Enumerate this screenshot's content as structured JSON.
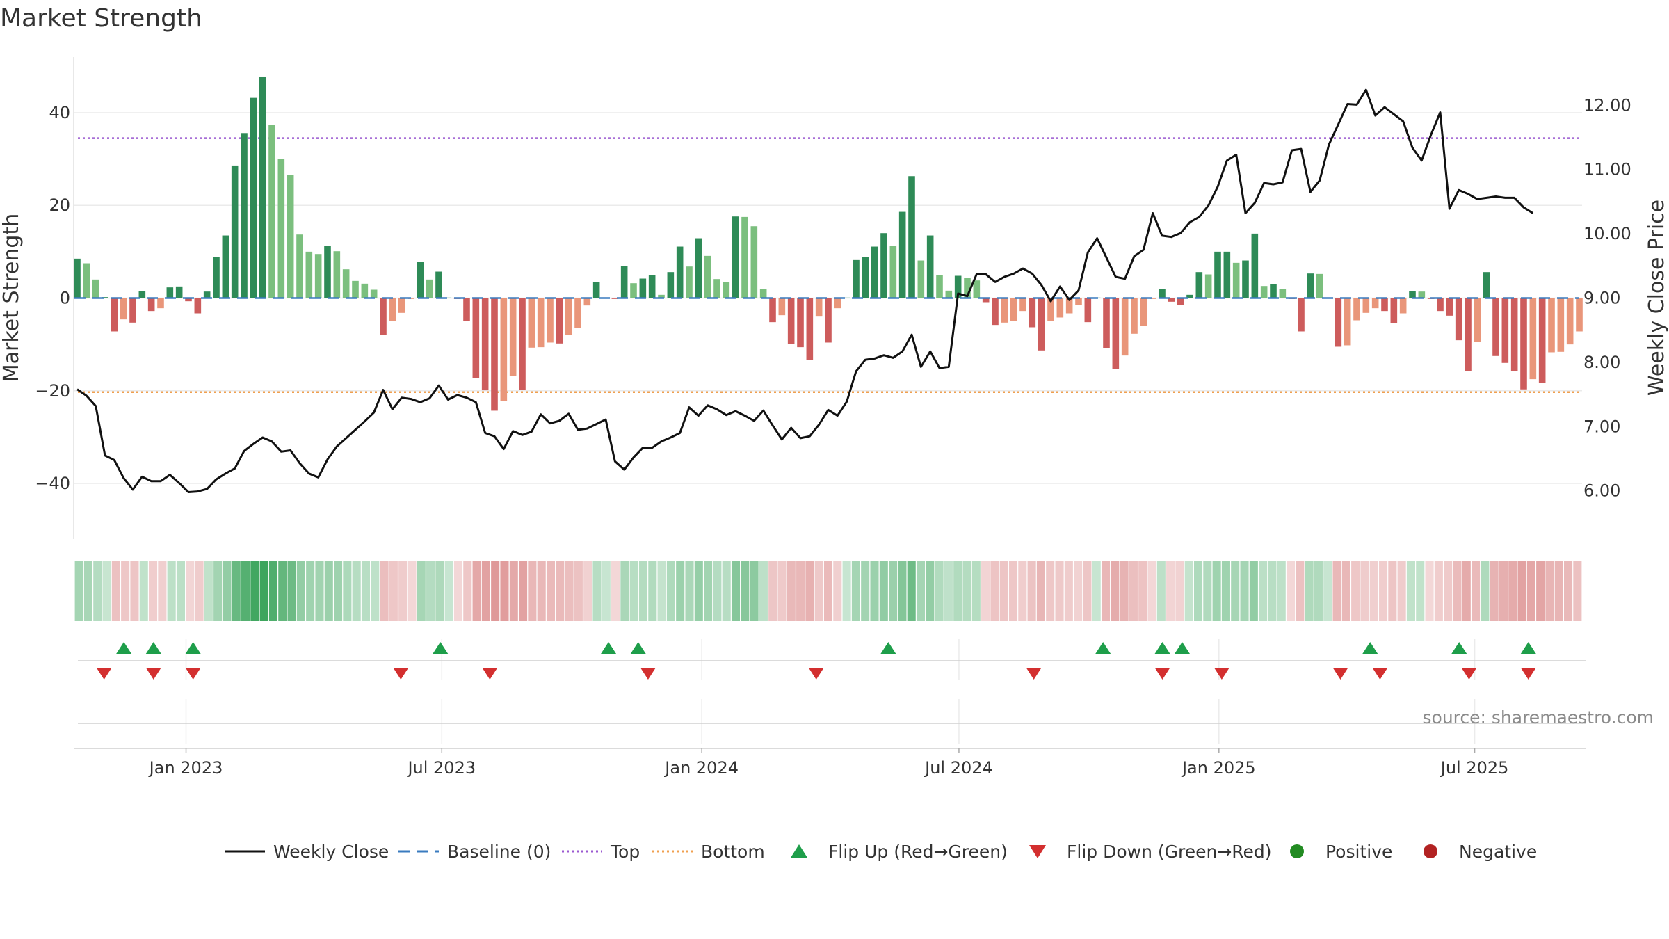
{
  "chart_data": {
    "type": "bar",
    "title": "Market Strength",
    "ylabel_left": "Market Strength",
    "ylabel_right": "Weekly Close Price",
    "ylim_left": [
      -52,
      52
    ],
    "ylim_right": [
      5.25,
      12.75
    ],
    "yticks_left": [
      40,
      20,
      0,
      -20,
      -40
    ],
    "yticks_left_labels": [
      "40",
      "20",
      "0",
      "−20",
      "−40"
    ],
    "yticks_right": [
      12,
      11,
      10,
      9,
      8,
      7,
      6
    ],
    "yticks_right_labels": [
      "12.00",
      "11.00",
      "10.00",
      "9.00",
      "8.00",
      "7.00",
      "6.00"
    ],
    "x_start": "2022-10-14",
    "x_range_days": [
      0,
      1067
    ],
    "xticks": [
      {
        "label": "Jan 2023",
        "day": 79
      },
      {
        "label": "Jul 2023",
        "day": 260
      },
      {
        "label": "Jan 2024",
        "day": 444
      },
      {
        "label": "Jul 2024",
        "day": 626
      },
      {
        "label": "Jan 2025",
        "day": 810
      },
      {
        "label": "Jul 2025",
        "day": 991
      }
    ],
    "top_threshold": 34.5,
    "bottom_threshold": -20.3,
    "baseline": 0,
    "strength": [
      8.5,
      7.5,
      4,
      0.2,
      -7.2,
      -4.6,
      -5.3,
      1.5,
      -2.8,
      -2.2,
      2.3,
      2.5,
      -0.7,
      -3.3,
      1.4,
      8.8,
      13.5,
      28.6,
      35.6,
      43.2,
      47.8,
      37.3,
      30,
      26.5,
      13.7,
      10,
      9.5,
      11.2,
      10.1,
      6.2,
      3.7,
      3.1,
      1.8,
      -8,
      -5,
      -3.2,
      -0.2,
      7.8,
      4,
      5.7,
      0.1,
      -0.2,
      -4.9,
      -17.3,
      -19.9,
      -24.3,
      -22.2,
      -16.8,
      -19.8,
      -10.7,
      -10.6,
      -9.6,
      -9.8,
      -7.9,
      -6.5,
      -1.6,
      3.4,
      0.1,
      -0.2,
      6.9,
      3.2,
      4.2,
      5,
      0.7,
      5.6,
      11.1,
      6.8,
      12.9,
      9.1,
      4.1,
      3.4,
      17.6,
      17.5,
      15.5,
      2,
      -5.2,
      -3.7,
      -9.9,
      -10.6,
      -13.4,
      -4,
      -9.6,
      -2.2,
      0.1,
      8.2,
      8.8,
      11.1,
      14,
      11.3,
      18.6,
      26.3,
      8.1,
      13.5,
      5,
      1.6,
      4.8,
      4.3,
      3.8,
      -0.9,
      -5.8,
      -5.3,
      -5,
      -2.8,
      -6.3,
      -11.3,
      -4.9,
      -4.2,
      -3.3,
      -1.5,
      -5.2,
      0.1,
      -10.8,
      -15.3,
      -12.4,
      -7.7,
      -6,
      -0.2,
      2,
      -0.8,
      -1.5,
      0.7,
      5.6,
      5.1,
      10,
      10,
      7.6,
      8.1,
      13.9,
      2.6,
      3,
      2,
      -0.2,
      -7.2,
      5.3,
      5.2,
      0.1,
      -10.5,
      -10.2,
      -4.8,
      -3.2,
      -2.2,
      -2.8,
      -5.4,
      -3.3,
      1.5,
      1.4,
      -0.2,
      -2.8,
      -3.8,
      -9.1,
      -15.8,
      -9.5,
      5.6,
      -12.5,
      -14,
      -15.8,
      -19.7,
      -17.5,
      -18.3,
      -11.7,
      -11.6,
      -10,
      -7.2
    ],
    "close": [
      7.58,
      7.48,
      7.32,
      6.55,
      6.48,
      6.2,
      6.02,
      6.22,
      6.15,
      6.15,
      6.25,
      6.12,
      5.98,
      5.99,
      6.03,
      6.18,
      6.27,
      6.35,
      6.62,
      6.73,
      6.83,
      6.77,
      6.61,
      6.63,
      6.43,
      6.27,
      6.21,
      6.49,
      6.69,
      6.82,
      6.95,
      7.08,
      7.22,
      7.57,
      7.27,
      7.45,
      7.43,
      7.38,
      7.44,
      7.64,
      7.42,
      7.49,
      7.45,
      7.38,
      6.9,
      6.85,
      6.65,
      6.93,
      6.87,
      6.92,
      7.19,
      7.05,
      7.09,
      7.2,
      6.95,
      6.97,
      7.04,
      7.11,
      6.46,
      6.33,
      6.52,
      6.67,
      6.67,
      6.77,
      6.83,
      6.9,
      7.3,
      7.17,
      7.33,
      7.27,
      7.18,
      7.24,
      7.17,
      7.09,
      7.25,
      7.02,
      6.8,
      6.98,
      6.82,
      6.85,
      7.03,
      7.26,
      7.17,
      7.39,
      7.86,
      8.04,
      8.06,
      8.11,
      8.07,
      8.17,
      8.43,
      7.93,
      8.17,
      7.91,
      7.93,
      9.07,
      9.03,
      9.37,
      9.37,
      9.25,
      9.33,
      9.38,
      9.46,
      9.38,
      9.2,
      8.95,
      9.18,
      8.97,
      9.12,
      9.71,
      9.93,
      9.63,
      9.33,
      9.3,
      9.65,
      9.75,
      10.32,
      9.97,
      9.95,
      10.01,
      10.18,
      10.26,
      10.44,
      10.73,
      11.14,
      11.23,
      10.32,
      10.48,
      10.79,
      10.77,
      10.8,
      11.3,
      11.32,
      10.65,
      10.83,
      11.39,
      11.7,
      12.02,
      12.01,
      12.24,
      11.84,
      11.97,
      11.86,
      11.75,
      11.34,
      11.14,
      11.54,
      11.89,
      10.39,
      10.68,
      10.62,
      10.54,
      10.56,
      10.58,
      10.56,
      10.56,
      10.41,
      10.32
    ],
    "flips_up_days": [
      35,
      56,
      84,
      259,
      378,
      399,
      576,
      728,
      770,
      784,
      917,
      980,
      1029
    ],
    "flips_down_days": [
      21,
      56,
      84,
      231,
      294,
      406,
      525,
      679,
      770,
      812,
      896,
      924,
      987,
      1029
    ],
    "colors": {
      "pos_strong": "#2e8b57",
      "pos_weak": "#7bbf7e",
      "neg_strong": "#cd5c5c",
      "neg_weak": "#e9967a",
      "close_line": "#111111",
      "baseline": "#3a7bbf",
      "top": "#9b59d0",
      "bottom": "#f0a050",
      "flip_up": "#1e9e4a",
      "flip_down": "#d32f2f",
      "positive_dot": "#228b22",
      "negative_dot": "#b22222"
    },
    "legend": [
      {
        "label": "Weekly Close",
        "kind": "solid-line",
        "color": "#111111"
      },
      {
        "label": "Baseline (0)",
        "kind": "dashed-line",
        "color": "#3a7bbf"
      },
      {
        "label": "Top",
        "kind": "dotted-line",
        "color": "#9b59d0"
      },
      {
        "label": "Bottom",
        "kind": "dotted-line",
        "color": "#f0a050"
      },
      {
        "label": "Flip Up (Red→Green)",
        "kind": "triangle-up",
        "color": "#1e9e4a"
      },
      {
        "label": "Flip Down (Green→Red)",
        "kind": "triangle-down",
        "color": "#d32f2f"
      },
      {
        "label": "Positive",
        "kind": "dot",
        "color": "#228b22"
      },
      {
        "label": "Negative",
        "kind": "dot",
        "color": "#b22222"
      }
    ],
    "legend_position": "bottom-center",
    "source": "source: sharemaestro.com"
  }
}
